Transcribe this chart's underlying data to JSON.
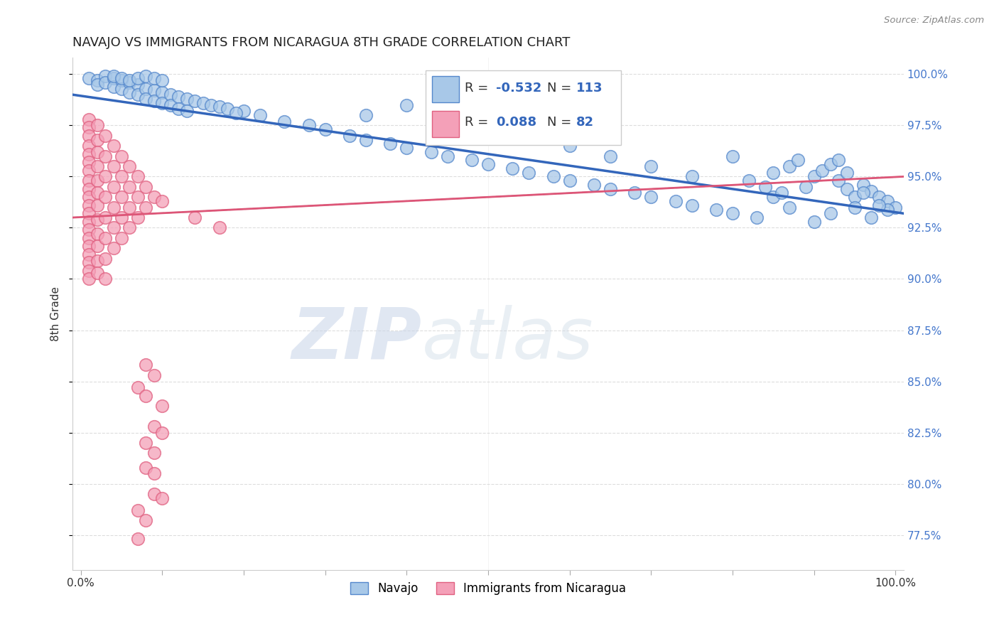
{
  "title": "NAVAJO VS IMMIGRANTS FROM NICARAGUA 8TH GRADE CORRELATION CHART",
  "source": "Source: ZipAtlas.com",
  "ylabel": "8th Grade",
  "xlim": [
    -0.01,
    1.01
  ],
  "ylim": [
    0.758,
    1.008
  ],
  "yticks": [
    0.775,
    0.8,
    0.825,
    0.85,
    0.875,
    0.9,
    0.925,
    0.95,
    0.975,
    1.0
  ],
  "ytick_labels": [
    "77.5%",
    "80.0%",
    "82.5%",
    "85.0%",
    "87.5%",
    "90.0%",
    "92.5%",
    "95.0%",
    "97.5%",
    "100.0%"
  ],
  "xticks": [
    0.0,
    0.1,
    0.2,
    0.3,
    0.4,
    0.5,
    0.6,
    0.7,
    0.8,
    0.9,
    1.0
  ],
  "xtick_labels": [
    "0.0%",
    "",
    "",
    "",
    "",
    "",
    "",
    "",
    "",
    "",
    "100.0%"
  ],
  "navajo_R": -0.532,
  "navajo_N": 113,
  "nicaragua_R": 0.088,
  "nicaragua_N": 82,
  "navajo_color": "#a8c8e8",
  "nicaragua_color": "#f4a0b8",
  "navajo_edge_color": "#5588cc",
  "nicaragua_edge_color": "#e06080",
  "navajo_line_color": "#3366bb",
  "nicaragua_line_color": "#dd5577",
  "navajo_line_y0": 0.99,
  "navajo_line_y1": 0.932,
  "nicaragua_line_y0": 0.93,
  "nicaragua_line_y1": 0.95,
  "navajo_scatter": [
    [
      0.01,
      0.998
    ],
    [
      0.02,
      0.997
    ],
    [
      0.02,
      0.995
    ],
    [
      0.03,
      0.999
    ],
    [
      0.03,
      0.996
    ],
    [
      0.04,
      0.998
    ],
    [
      0.04,
      0.994
    ],
    [
      0.05,
      0.997
    ],
    [
      0.05,
      0.993
    ],
    [
      0.06,
      0.996
    ],
    [
      0.06,
      0.991
    ],
    [
      0.07,
      0.995
    ],
    [
      0.07,
      0.99
    ],
    [
      0.08,
      0.993
    ],
    [
      0.08,
      0.988
    ],
    [
      0.09,
      0.992
    ],
    [
      0.09,
      0.987
    ],
    [
      0.1,
      0.991
    ],
    [
      0.1,
      0.986
    ],
    [
      0.11,
      0.99
    ],
    [
      0.11,
      0.985
    ],
    [
      0.12,
      0.989
    ],
    [
      0.12,
      0.983
    ],
    [
      0.13,
      0.988
    ],
    [
      0.13,
      0.982
    ],
    [
      0.14,
      0.987
    ],
    [
      0.15,
      0.986
    ],
    [
      0.16,
      0.985
    ],
    [
      0.04,
      0.999
    ],
    [
      0.05,
      0.998
    ],
    [
      0.06,
      0.997
    ],
    [
      0.07,
      0.998
    ],
    [
      0.08,
      0.999
    ],
    [
      0.09,
      0.998
    ],
    [
      0.1,
      0.997
    ],
    [
      0.2,
      0.982
    ],
    [
      0.22,
      0.98
    ],
    [
      0.25,
      0.977
    ],
    [
      0.28,
      0.975
    ],
    [
      0.3,
      0.973
    ],
    [
      0.33,
      0.97
    ],
    [
      0.35,
      0.968
    ],
    [
      0.38,
      0.966
    ],
    [
      0.4,
      0.964
    ],
    [
      0.43,
      0.962
    ],
    [
      0.45,
      0.96
    ],
    [
      0.48,
      0.958
    ],
    [
      0.5,
      0.956
    ],
    [
      0.53,
      0.954
    ],
    [
      0.55,
      0.952
    ],
    [
      0.58,
      0.95
    ],
    [
      0.6,
      0.948
    ],
    [
      0.63,
      0.946
    ],
    [
      0.65,
      0.944
    ],
    [
      0.68,
      0.942
    ],
    [
      0.7,
      0.94
    ],
    [
      0.73,
      0.938
    ],
    [
      0.75,
      0.936
    ],
    [
      0.78,
      0.934
    ],
    [
      0.8,
      0.932
    ],
    [
      0.83,
      0.93
    ],
    [
      0.85,
      0.952
    ],
    [
      0.87,
      0.955
    ],
    [
      0.88,
      0.958
    ],
    [
      0.89,
      0.945
    ],
    [
      0.9,
      0.95
    ],
    [
      0.91,
      0.953
    ],
    [
      0.92,
      0.956
    ],
    [
      0.93,
      0.948
    ],
    [
      0.94,
      0.944
    ],
    [
      0.95,
      0.94
    ],
    [
      0.96,
      0.946
    ],
    [
      0.97,
      0.943
    ],
    [
      0.98,
      0.94
    ],
    [
      0.99,
      0.938
    ],
    [
      1.0,
      0.935
    ],
    [
      0.6,
      0.965
    ],
    [
      0.65,
      0.96
    ],
    [
      0.7,
      0.955
    ],
    [
      0.75,
      0.95
    ],
    [
      0.8,
      0.96
    ],
    [
      0.85,
      0.94
    ],
    [
      0.87,
      0.935
    ],
    [
      0.9,
      0.928
    ],
    [
      0.92,
      0.932
    ],
    [
      0.95,
      0.935
    ],
    [
      0.97,
      0.93
    ],
    [
      0.99,
      0.934
    ],
    [
      0.82,
      0.948
    ],
    [
      0.84,
      0.945
    ],
    [
      0.86,
      0.942
    ],
    [
      0.55,
      0.97
    ],
    [
      0.45,
      0.975
    ],
    [
      0.35,
      0.98
    ],
    [
      0.93,
      0.958
    ],
    [
      0.94,
      0.952
    ],
    [
      0.96,
      0.942
    ],
    [
      0.98,
      0.936
    ],
    [
      0.4,
      0.985
    ],
    [
      0.17,
      0.984
    ],
    [
      0.18,
      0.983
    ],
    [
      0.19,
      0.981
    ]
  ],
  "nicaragua_scatter": [
    [
      0.01,
      0.978
    ],
    [
      0.01,
      0.974
    ],
    [
      0.01,
      0.97
    ],
    [
      0.01,
      0.965
    ],
    [
      0.01,
      0.961
    ],
    [
      0.01,
      0.957
    ],
    [
      0.01,
      0.953
    ],
    [
      0.01,
      0.948
    ],
    [
      0.01,
      0.944
    ],
    [
      0.01,
      0.94
    ],
    [
      0.01,
      0.936
    ],
    [
      0.01,
      0.932
    ],
    [
      0.01,
      0.928
    ],
    [
      0.01,
      0.924
    ],
    [
      0.01,
      0.92
    ],
    [
      0.01,
      0.916
    ],
    [
      0.01,
      0.912
    ],
    [
      0.01,
      0.908
    ],
    [
      0.01,
      0.904
    ],
    [
      0.01,
      0.9
    ],
    [
      0.02,
      0.975
    ],
    [
      0.02,
      0.968
    ],
    [
      0.02,
      0.962
    ],
    [
      0.02,
      0.955
    ],
    [
      0.02,
      0.948
    ],
    [
      0.02,
      0.942
    ],
    [
      0.02,
      0.936
    ],
    [
      0.02,
      0.929
    ],
    [
      0.02,
      0.922
    ],
    [
      0.02,
      0.916
    ],
    [
      0.02,
      0.909
    ],
    [
      0.02,
      0.903
    ],
    [
      0.03,
      0.97
    ],
    [
      0.03,
      0.96
    ],
    [
      0.03,
      0.95
    ],
    [
      0.03,
      0.94
    ],
    [
      0.03,
      0.93
    ],
    [
      0.03,
      0.92
    ],
    [
      0.03,
      0.91
    ],
    [
      0.03,
      0.9
    ],
    [
      0.04,
      0.965
    ],
    [
      0.04,
      0.955
    ],
    [
      0.04,
      0.945
    ],
    [
      0.04,
      0.935
    ],
    [
      0.04,
      0.925
    ],
    [
      0.04,
      0.915
    ],
    [
      0.05,
      0.96
    ],
    [
      0.05,
      0.95
    ],
    [
      0.05,
      0.94
    ],
    [
      0.05,
      0.93
    ],
    [
      0.05,
      0.92
    ],
    [
      0.06,
      0.955
    ],
    [
      0.06,
      0.945
    ],
    [
      0.06,
      0.935
    ],
    [
      0.06,
      0.925
    ],
    [
      0.07,
      0.95
    ],
    [
      0.07,
      0.94
    ],
    [
      0.07,
      0.93
    ],
    [
      0.08,
      0.945
    ],
    [
      0.08,
      0.935
    ],
    [
      0.09,
      0.94
    ],
    [
      0.1,
      0.938
    ],
    [
      0.14,
      0.93
    ],
    [
      0.17,
      0.925
    ],
    [
      0.08,
      0.858
    ],
    [
      0.09,
      0.853
    ],
    [
      0.07,
      0.847
    ],
    [
      0.08,
      0.843
    ],
    [
      0.1,
      0.838
    ],
    [
      0.09,
      0.828
    ],
    [
      0.1,
      0.825
    ],
    [
      0.08,
      0.82
    ],
    [
      0.09,
      0.815
    ],
    [
      0.08,
      0.808
    ],
    [
      0.09,
      0.805
    ],
    [
      0.09,
      0.795
    ],
    [
      0.1,
      0.793
    ],
    [
      0.07,
      0.787
    ],
    [
      0.08,
      0.782
    ],
    [
      0.07,
      0.773
    ]
  ],
  "watermark_zip": "ZIP",
  "watermark_atlas": "atlas"
}
